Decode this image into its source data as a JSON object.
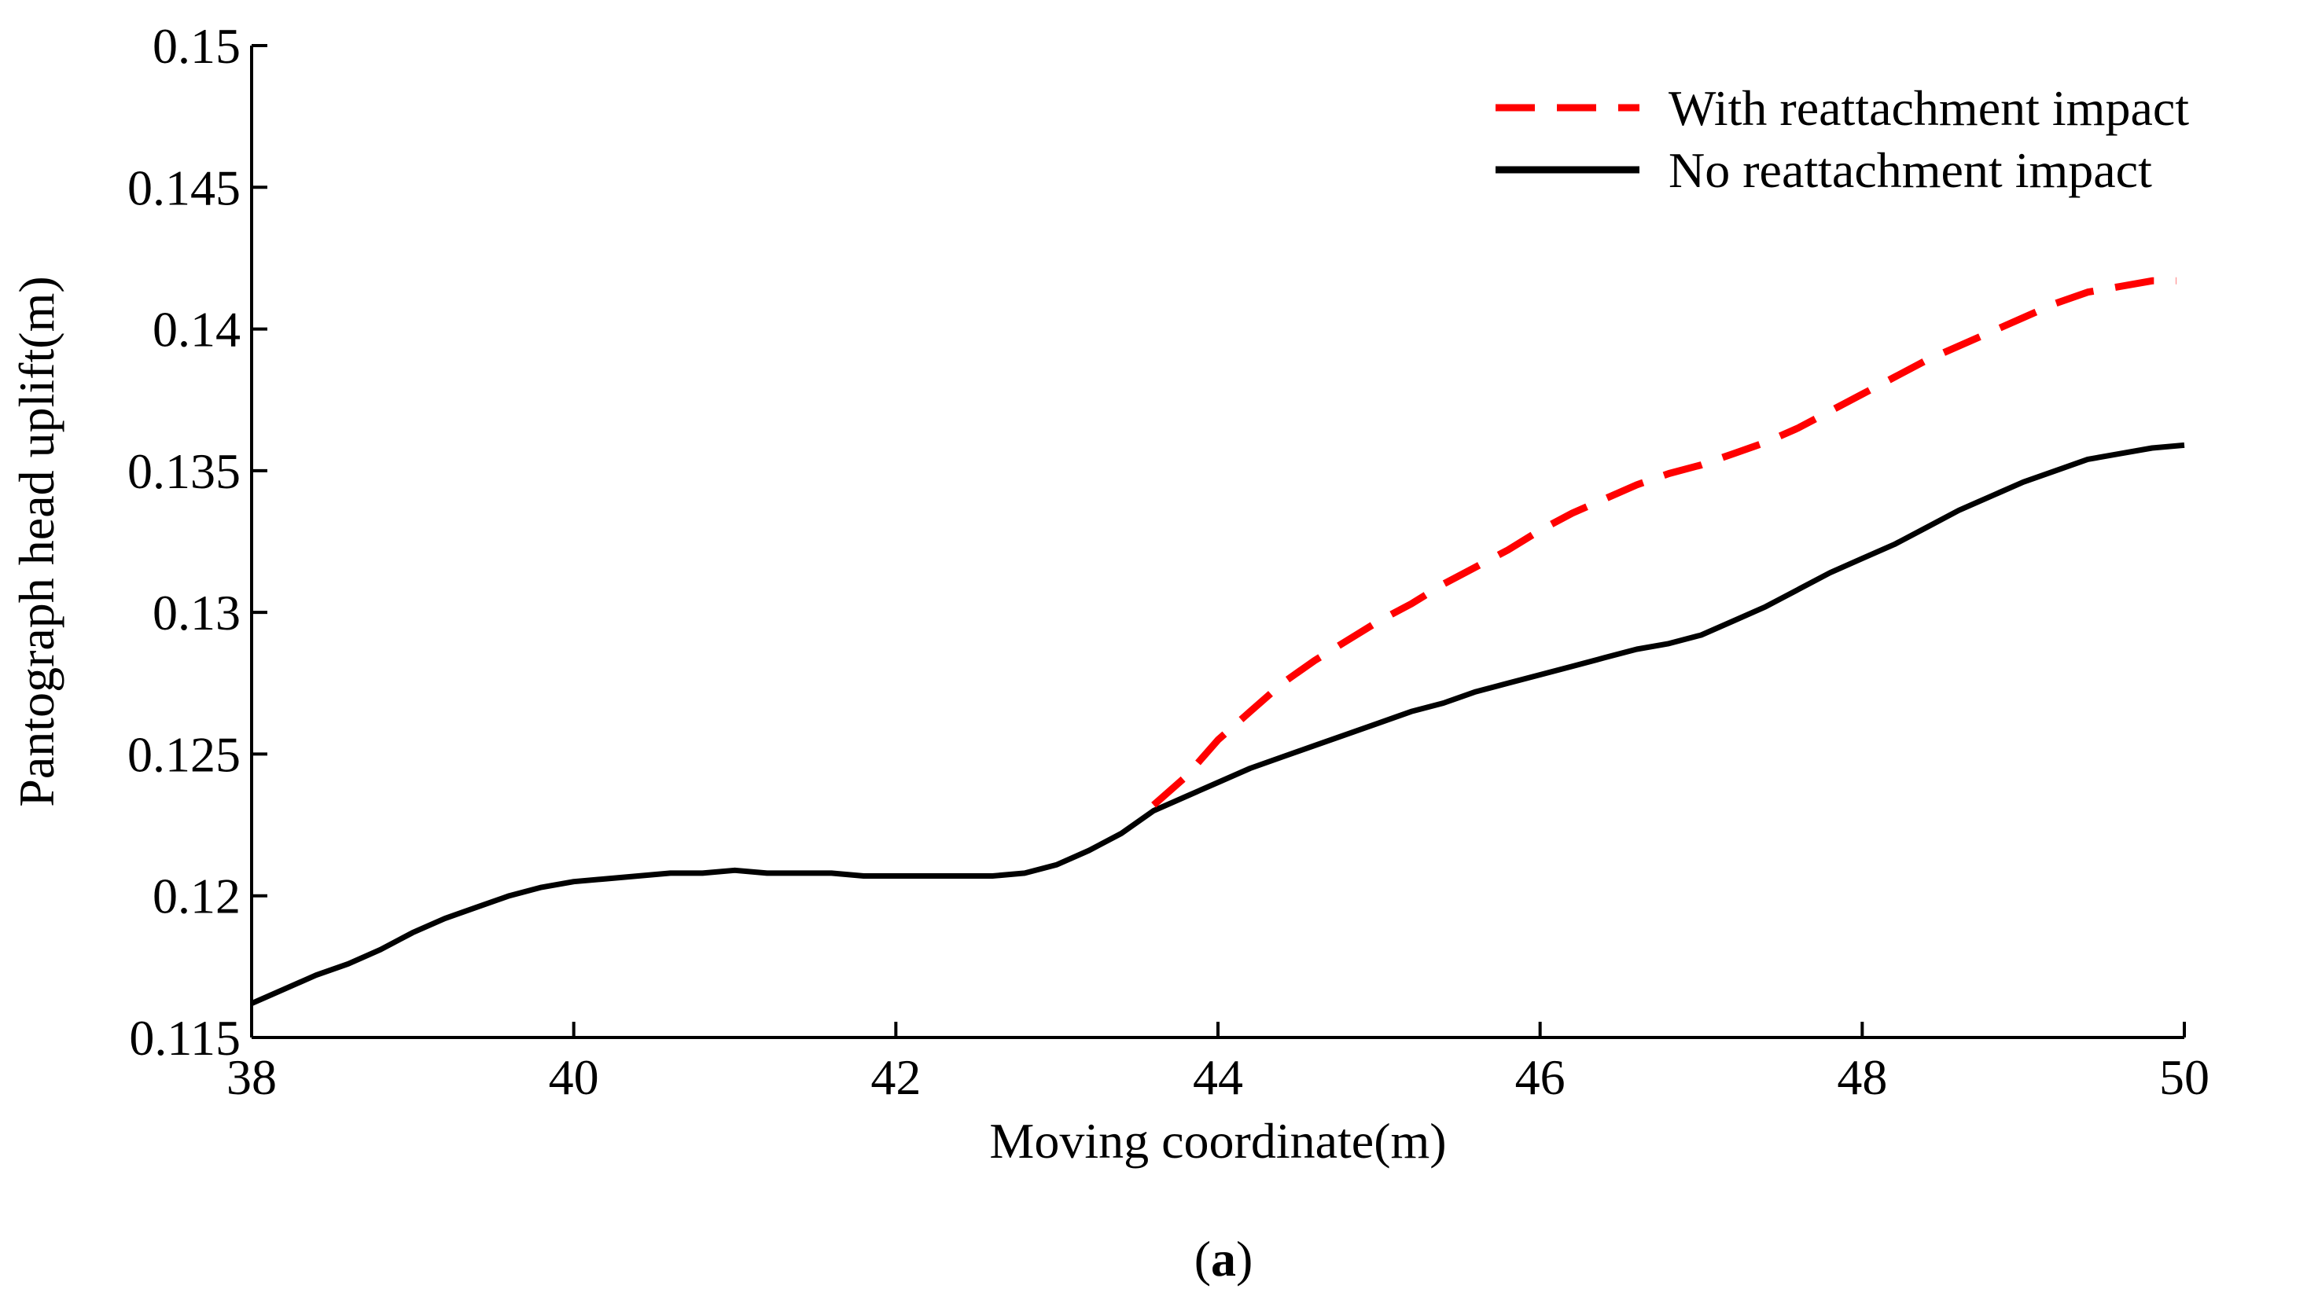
{
  "chart_data": {
    "type": "line",
    "title": "",
    "xlabel": "Moving coordinate(m)",
    "ylabel": "Pantograph head uplift(m)",
    "xlim": [
      38,
      50
    ],
    "ylim": [
      0.115,
      0.15
    ],
    "xticks": [
      "38",
      "40",
      "42",
      "44",
      "46",
      "48",
      "50"
    ],
    "yticks": [
      "0.115",
      "0.12",
      "0.125",
      "0.13",
      "0.135",
      "0.14",
      "0.145",
      "0.15"
    ],
    "grid": false,
    "legend_position": "top-right",
    "series": [
      {
        "name": "With reattachment impact",
        "color": "#ff0000",
        "style": "dashed",
        "x": [
          43.6,
          43.8,
          44.0,
          44.2,
          44.4,
          44.6,
          44.8,
          45.0,
          45.2,
          45.4,
          45.6,
          45.8,
          46.0,
          46.2,
          46.4,
          46.6,
          46.8,
          47.0,
          47.2,
          47.4,
          47.6,
          47.8,
          48.0,
          48.2,
          48.4,
          48.6,
          48.8,
          49.0,
          49.2,
          49.4,
          49.6,
          49.8,
          49.95
        ],
        "y": [
          0.1232,
          0.1242,
          0.1255,
          0.1265,
          0.1275,
          0.1283,
          0.129,
          0.1297,
          0.1303,
          0.131,
          0.1316,
          0.1322,
          0.1329,
          0.1335,
          0.134,
          0.1345,
          0.1349,
          0.1352,
          0.1356,
          0.136,
          0.1365,
          0.1371,
          0.1377,
          0.1383,
          0.1389,
          0.1394,
          0.1399,
          0.1404,
          0.1409,
          0.1413,
          0.1415,
          0.1417,
          0.1417
        ]
      },
      {
        "name": "No reattachment impact",
        "color": "#000000",
        "style": "solid",
        "x": [
          38.0,
          38.2,
          38.4,
          38.6,
          38.8,
          39.0,
          39.2,
          39.4,
          39.6,
          39.8,
          40.0,
          40.2,
          40.4,
          40.6,
          40.8,
          41.0,
          41.2,
          41.4,
          41.6,
          41.8,
          42.0,
          42.2,
          42.4,
          42.6,
          42.8,
          43.0,
          43.2,
          43.4,
          43.6,
          43.8,
          44.0,
          44.2,
          44.4,
          44.6,
          44.8,
          45.0,
          45.2,
          45.4,
          45.6,
          45.8,
          46.0,
          46.2,
          46.4,
          46.6,
          46.8,
          47.0,
          47.2,
          47.4,
          47.6,
          47.8,
          48.0,
          48.2,
          48.4,
          48.6,
          48.8,
          49.0,
          49.2,
          49.4,
          49.6,
          49.8,
          50.0
        ],
        "y": [
          0.1162,
          0.1167,
          0.1172,
          0.1176,
          0.1181,
          0.1187,
          0.1192,
          0.1196,
          0.12,
          0.1203,
          0.1205,
          0.1206,
          0.1207,
          0.1208,
          0.1208,
          0.1209,
          0.1208,
          0.1208,
          0.1208,
          0.1207,
          0.1207,
          0.1207,
          0.1207,
          0.1207,
          0.1208,
          0.1211,
          0.1216,
          0.1222,
          0.123,
          0.1235,
          0.124,
          0.1245,
          0.1249,
          0.1253,
          0.1257,
          0.1261,
          0.1265,
          0.1268,
          0.1272,
          0.1275,
          0.1278,
          0.1281,
          0.1284,
          0.1287,
          0.1289,
          0.1292,
          0.1297,
          0.1302,
          0.1308,
          0.1314,
          0.1319,
          0.1324,
          0.133,
          0.1336,
          0.1341,
          0.1346,
          0.135,
          0.1354,
          0.1356,
          0.1358,
          0.1359
        ]
      }
    ]
  },
  "caption": {
    "prefix": "(",
    "letter": "a",
    "suffix": ")"
  }
}
